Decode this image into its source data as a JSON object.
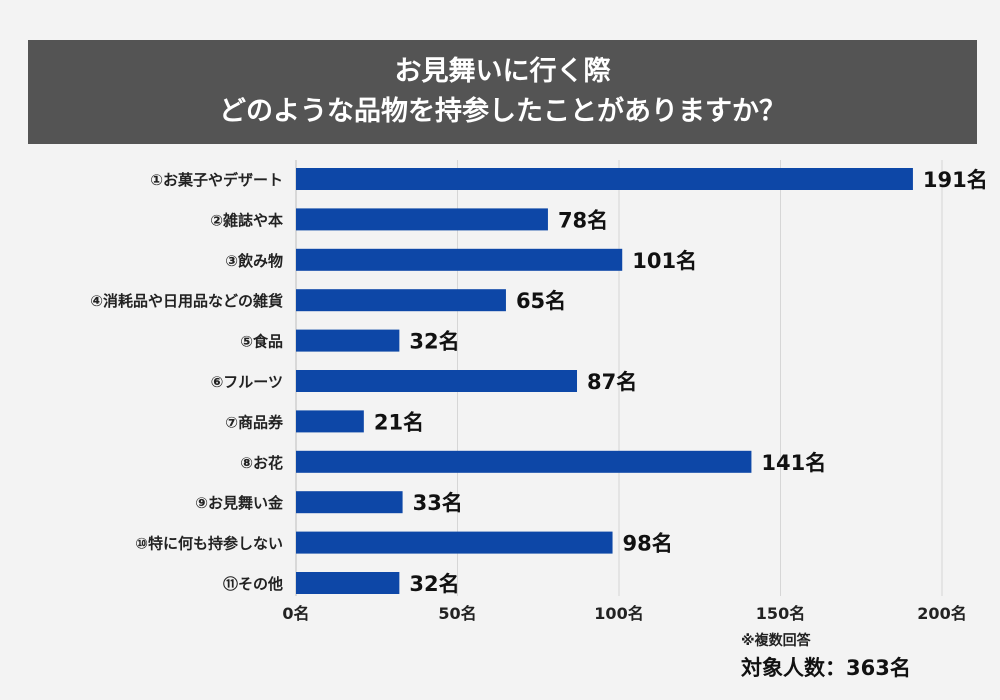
{
  "header": {
    "title_line1": "お見舞いに行く際",
    "title_line2": "どのような品物を持参したことがありますか？"
  },
  "chart_data": {
    "type": "bar",
    "orientation": "horizontal",
    "categories": [
      "①お菓子やデザート",
      "②雑誌や本",
      "③飲み物",
      "④消耗品や日用品などの雑貨",
      "⑤食品",
      "⑥フルーツ",
      "⑦商品券",
      "⑧お花",
      "⑨お見舞い金",
      "⑩特に何も持参しない",
      "⑪その他"
    ],
    "values": [
      191,
      78,
      101,
      65,
      32,
      87,
      21,
      141,
      33,
      98,
      32
    ],
    "value_suffix": "名",
    "xlim": [
      0,
      200
    ],
    "xticks": [
      0,
      50,
      100,
      150,
      200
    ],
    "xtick_labels": [
      "0名",
      "50名",
      "100名",
      "150名",
      "200名"
    ],
    "grid": true,
    "bar_color": "#0d47a7"
  },
  "footer": {
    "note": "※複数回答",
    "total": "対象人数：363名"
  }
}
